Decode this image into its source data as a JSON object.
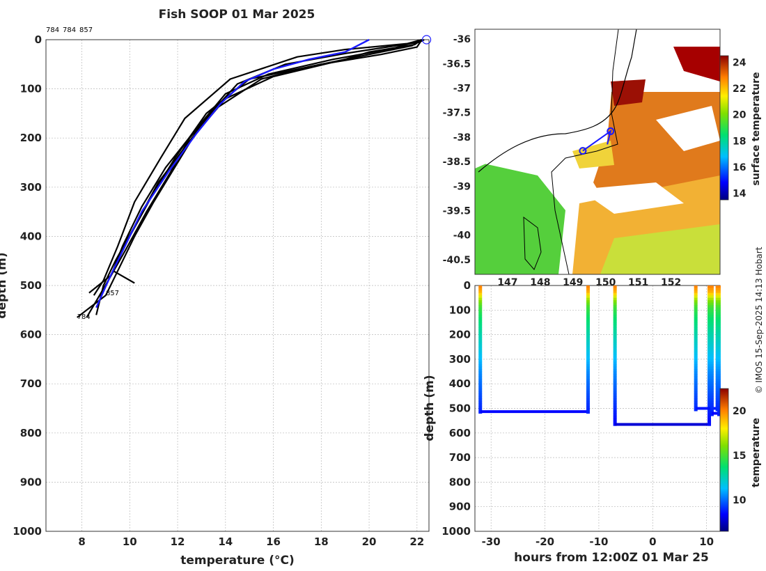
{
  "title": "Fish SOOP 01 Mar 2025",
  "credit": "© IMOS 15-Sep-2025 14:13 Hobart",
  "colors": {
    "profile": "#000000",
    "highlight": "#1a1aff",
    "coast": "#000000"
  },
  "chart_data": [
    {
      "type": "line",
      "name": "temperature-profiles",
      "xlabel": "temperature (°C)",
      "ylabel": "depth (m)",
      "xlim": [
        6.5,
        22.5
      ],
      "ylim": [
        0,
        1000
      ],
      "y_reversed": true,
      "xticks": [
        8,
        10,
        12,
        14,
        16,
        18,
        20,
        22
      ],
      "yticks": [
        0,
        100,
        200,
        300,
        400,
        500,
        600,
        700,
        800,
        900,
        1000
      ],
      "top_labels": [
        "784",
        "784",
        "857"
      ],
      "curve_labels": [
        {
          "text": "857",
          "x": 9.0,
          "y": 520
        },
        {
          "text": "784",
          "x": 7.8,
          "y": 568
        }
      ],
      "series": [
        {
          "name": "drop-1",
          "color": "black",
          "points": [
            [
              22.2,
              0
            ],
            [
              21.9,
              10
            ],
            [
              20.0,
              25
            ],
            [
              19.0,
              40
            ],
            [
              16.0,
              75
            ],
            [
              14.0,
              120
            ],
            [
              12.6,
              200
            ],
            [
              11.2,
              290
            ],
            [
              10.2,
              380
            ],
            [
              9.4,
              450
            ],
            [
              8.9,
              500
            ],
            [
              8.6,
              560
            ]
          ]
        },
        {
          "name": "drop-2",
          "color": "black",
          "points": [
            [
              22.2,
              0
            ],
            [
              22.0,
              15
            ],
            [
              20.5,
              30
            ],
            [
              18.0,
              50
            ],
            [
              15.0,
              80
            ],
            [
              13.2,
              150
            ],
            [
              11.9,
              240
            ],
            [
              10.9,
              320
            ],
            [
              10.0,
              400
            ],
            [
              9.2,
              480
            ],
            [
              8.3,
              515
            ]
          ]
        },
        {
          "name": "drop-3",
          "color": "black",
          "points": [
            [
              22.2,
              0
            ],
            [
              21.6,
              8
            ],
            [
              19.0,
              20
            ],
            [
              17.0,
              35
            ],
            [
              14.2,
              80
            ],
            [
              12.3,
              160
            ],
            [
              11.3,
              240
            ],
            [
              10.2,
              330
            ],
            [
              9.5,
              420
            ],
            [
              8.9,
              490
            ],
            [
              8.5,
              520
            ]
          ]
        },
        {
          "name": "drop-4",
          "color": "black",
          "points": [
            [
              22.2,
              0
            ],
            [
              21.8,
              12
            ],
            [
              20.0,
              30
            ],
            [
              17.5,
              55
            ],
            [
              15.5,
              80
            ],
            [
              13.6,
              140
            ],
            [
              12.5,
              200
            ],
            [
              11.7,
              270
            ],
            [
              10.7,
              350
            ],
            [
              9.8,
              430
            ],
            [
              9.1,
              490
            ],
            [
              8.2,
              565
            ]
          ]
        },
        {
          "name": "drop-5",
          "color": "black",
          "points": [
            [
              22.3,
              0
            ],
            [
              22.1,
              5
            ],
            [
              19.0,
              28
            ],
            [
              16.5,
              50
            ],
            [
              14.5,
              90
            ],
            [
              13.0,
              170
            ],
            [
              12.0,
              250
            ],
            [
              11.0,
              330
            ],
            [
              10.2,
              400
            ],
            [
              9.6,
              460
            ],
            [
              9.0,
              520
            ],
            [
              7.8,
              565
            ]
          ]
        },
        {
          "name": "drop-6",
          "color": "black",
          "points": [
            [
              22.2,
              0
            ],
            [
              21.0,
              18
            ],
            [
              18.5,
              40
            ],
            [
              15.8,
              70
            ],
            [
              14.0,
              110
            ],
            [
              12.8,
              180
            ],
            [
              11.5,
              260
            ],
            [
              10.5,
              340
            ],
            [
              9.7,
              420
            ],
            [
              9.3,
              470
            ],
            [
              10.2,
              495
            ]
          ]
        },
        {
          "name": "mean-profile",
          "color": "blue",
          "points": [
            [
              20.0,
              0
            ],
            [
              19.0,
              25
            ],
            [
              17.5,
              40
            ],
            [
              16.0,
              60
            ],
            [
              14.8,
              85
            ],
            [
              13.8,
              130
            ],
            [
              12.8,
              190
            ],
            [
              11.6,
              270
            ],
            [
              10.5,
              350
            ],
            [
              9.8,
              420
            ],
            [
              9.2,
              480
            ],
            [
              8.6,
              545
            ]
          ]
        }
      ]
    },
    {
      "type": "heatmap",
      "name": "surface-temperature-map",
      "xticks": [
        147,
        148,
        149,
        150,
        151,
        152
      ],
      "xticks_labels": [
        "147",
        "148",
        "149",
        "150",
        "151",
        "152"
      ],
      "xlim": [
        146.0,
        153.5
      ],
      "ylim": [
        -40.8,
        -35.8
      ],
      "yticks": [
        -36,
        -36.5,
        -37,
        -37.5,
        -38,
        -38.5,
        -39,
        -39.5,
        -40,
        -40.5
      ],
      "colorbar": {
        "label": "surface temperature",
        "ticks": [
          14,
          16,
          18,
          20,
          22,
          24
        ],
        "range": [
          13.5,
          24.5
        ]
      },
      "track": [
        [
          149.3,
          -38.28
        ],
        [
          150.15,
          -37.88
        ],
        [
          150.05,
          -38.15
        ]
      ]
    },
    {
      "type": "scatter",
      "name": "depth-time-section",
      "xlabel": "hours from 12:00Z 01 Mar 25",
      "ylabel": "depth (m)",
      "xlim": [
        -33,
        12.5
      ],
      "ylim": [
        0,
        1000
      ],
      "xticks": [
        -30,
        -20,
        -10,
        0,
        10
      ],
      "yticks": [
        0,
        100,
        200,
        300,
        400,
        500,
        600,
        700,
        800,
        900,
        1000
      ],
      "colorbar": {
        "label": "temperature",
        "ticks": [
          10,
          15,
          20
        ],
        "range": [
          6.5,
          22.5
        ]
      },
      "drops": [
        {
          "t_start": -32,
          "t_end": -12,
          "max_depth": 513,
          "bottom_temp": 8.5
        },
        {
          "t_start": -7,
          "t_end": 10.5,
          "max_depth": 565,
          "bottom_temp": 7.8
        },
        {
          "t_start": 8,
          "t_end": 12,
          "max_depth": 500,
          "bottom_temp": 8.7
        },
        {
          "t_start": 11,
          "t_end": 12.3,
          "max_depth": 520,
          "bottom_temp": 8.4
        }
      ]
    }
  ]
}
